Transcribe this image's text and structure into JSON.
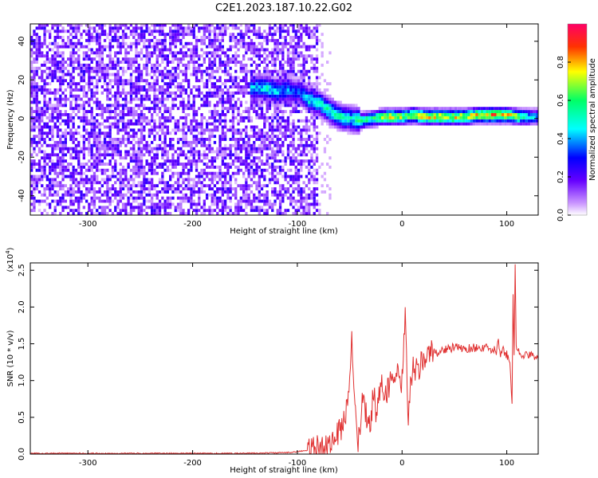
{
  "page_title": "C2E1.2023.187.10.22.G02",
  "chart_data": [
    {
      "type": "heatmap",
      "xlabel": "Height of straight line (km)",
      "ylabel": "Frequency (Hz)",
      "xlim": [
        -355,
        130
      ],
      "ylim": [
        -50,
        49
      ],
      "xticks": [
        -300,
        -200,
        -100,
        0,
        100
      ],
      "yticks": [
        -40,
        -20,
        0,
        20,
        40
      ],
      "colorbar": {
        "label": "Normalized spectral amplitude",
        "range": [
          0.0,
          1.0
        ],
        "ticks": [
          "0.0",
          "0.2",
          "0.4",
          "0.6",
          "0.8"
        ],
        "colors": [
          "#ffffff",
          "#cc99ff",
          "#6600ff",
          "#0000ff",
          "#00ffff",
          "#00ff66",
          "#ffff00",
          "#ff3300",
          "#ff0066"
        ]
      },
      "signal_track": [
        {
          "x": -140,
          "f": 15,
          "amp": 0.45
        },
        {
          "x": -130,
          "f": 15,
          "amp": 0.5
        },
        {
          "x": -120,
          "f": 13,
          "amp": 0.45
        },
        {
          "x": -110,
          "f": 14,
          "amp": 0.4
        },
        {
          "x": -100,
          "f": 13,
          "amp": 0.35
        },
        {
          "x": -90,
          "f": 9,
          "amp": 0.5
        },
        {
          "x": -80,
          "f": 7,
          "amp": 0.5
        },
        {
          "x": -70,
          "f": 3,
          "amp": 0.55
        },
        {
          "x": -60,
          "f": 0,
          "amp": 0.55
        },
        {
          "x": -50,
          "f": -1,
          "amp": 0.5
        },
        {
          "x": -40,
          "f": -2,
          "amp": 0.6
        },
        {
          "x": -30,
          "f": -1,
          "amp": 0.55
        },
        {
          "x": -20,
          "f": 0,
          "amp": 0.75
        },
        {
          "x": -10,
          "f": 0,
          "amp": 0.8
        },
        {
          "x": 0,
          "f": 0,
          "amp": 0.7
        },
        {
          "x": 10,
          "f": 1,
          "amp": 0.75
        },
        {
          "x": 20,
          "f": 0,
          "amp": 0.8
        },
        {
          "x": 30,
          "f": 0,
          "amp": 0.8
        },
        {
          "x": 40,
          "f": 0,
          "amp": 0.8
        },
        {
          "x": 50,
          "f": 0,
          "amp": 0.8
        },
        {
          "x": 60,
          "f": 0,
          "amp": 0.75
        },
        {
          "x": 70,
          "f": 1,
          "amp": 0.8
        },
        {
          "x": 80,
          "f": 1,
          "amp": 0.85
        },
        {
          "x": 90,
          "f": 1,
          "amp": 0.85
        },
        {
          "x": 100,
          "f": 1,
          "amp": 0.8
        },
        {
          "x": 110,
          "f": 0,
          "amp": 0.7
        },
        {
          "x": 120,
          "f": 0,
          "amp": 0.5
        },
        {
          "x": 130,
          "f": 0,
          "amp": 0.4
        }
      ],
      "noise_region": {
        "x_end": -80,
        "amp": 0.25
      }
    },
    {
      "type": "line",
      "xlabel": "Height of straight line (km)",
      "ylabel": "SNR (10 * v/v)",
      "multiplier_label": "(x10",
      "multiplier_exp": "4",
      "multiplier_close": ")",
      "xlim": [
        -355,
        130
      ],
      "ylim": [
        0,
        2.6
      ],
      "xticks": [
        -300,
        -200,
        -100,
        0,
        100
      ],
      "yticks": [
        "0.0",
        "0.5",
        "1.0",
        "1.5",
        "2.0",
        "2.5"
      ],
      "line_color": "#e03030",
      "series": [
        {
          "x": [
            -355,
            -300,
            -250,
            -200,
            -150,
            -110,
            -90,
            -75,
            -65,
            -60,
            -55,
            -52,
            -50,
            -48,
            -46,
            -45,
            -44,
            -42,
            -40,
            -38,
            -35,
            -30,
            -27,
            -25,
            -22,
            -20,
            -15,
            -10,
            -5,
            -2,
            0,
            3,
            6,
            8,
            10,
            15,
            20,
            25,
            30,
            35,
            40,
            50,
            60,
            70,
            80,
            85,
            90,
            92,
            94,
            96,
            100,
            103,
            105,
            106,
            107,
            108,
            109,
            110,
            112,
            115,
            120,
            130
          ],
          "y": [
            0.01,
            0.01,
            0.01,
            0.01,
            0.01,
            0.02,
            0.05,
            0.1,
            0.2,
            0.3,
            0.45,
            0.8,
            1.1,
            1.6,
            0.9,
            0.6,
            0.4,
            0.2,
            0.3,
            0.7,
            0.55,
            0.4,
            0.9,
            0.6,
            0.75,
            0.95,
            0.85,
            1.0,
            1.1,
            0.9,
            1.0,
            1.85,
            0.4,
            0.9,
            1.2,
            1.1,
            1.3,
            1.35,
            1.4,
            1.38,
            1.42,
            1.45,
            1.43,
            1.45,
            1.44,
            1.42,
            1.4,
            1.55,
            1.3,
            1.42,
            1.35,
            1.3,
            0.65,
            2.2,
            1.3,
            2.55,
            1.5,
            1.4,
            1.38,
            1.35,
            1.34,
            1.33
          ]
        }
      ]
    }
  ]
}
